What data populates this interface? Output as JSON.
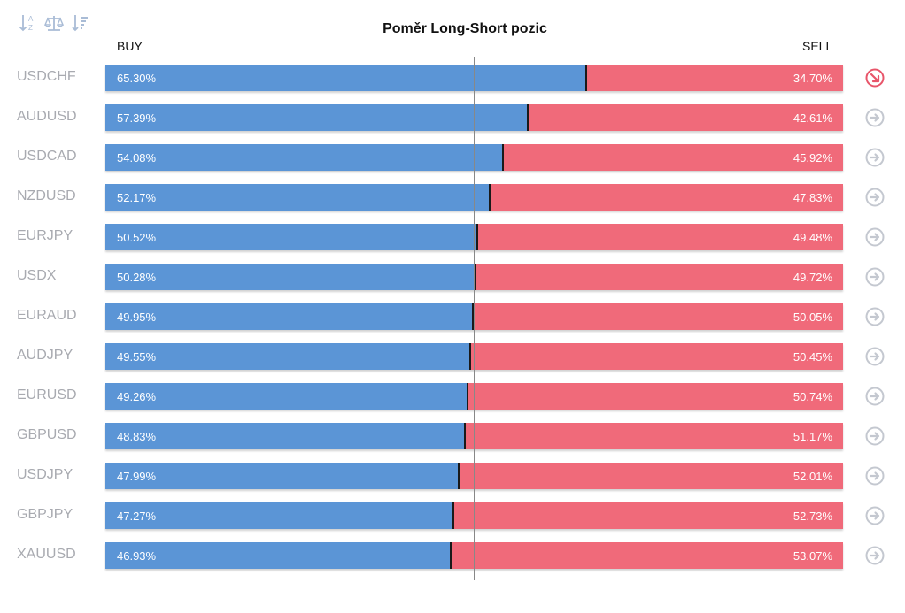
{
  "toolbar": {
    "icons": [
      "sort-alpha-icon",
      "balance-scale-icon",
      "sort-value-icon"
    ]
  },
  "colors": {
    "buy": "#5b95d6",
    "sell": "#f06a7a",
    "symbol_text": "#a8aab0",
    "arrow_neutral": "#c4c8d0",
    "arrow_active": "#e8556a"
  },
  "chart_data": {
    "type": "bar",
    "stacked": true,
    "orientation": "horizontal",
    "title": "Poměr Long-Short pozic",
    "buy_label": "BUY",
    "sell_label": "SELL",
    "xlim": [
      0,
      100
    ],
    "reference_line": 50,
    "categories": [
      "USDCHF",
      "AUDUSD",
      "USDCAD",
      "NZDUSD",
      "EURJPY",
      "USDX",
      "EURAUD",
      "AUDJPY",
      "EURUSD",
      "GBPUSD",
      "USDJPY",
      "GBPJPY",
      "XAUUSD"
    ],
    "series": [
      {
        "name": "BUY",
        "values": [
          65.3,
          57.39,
          54.08,
          52.17,
          50.52,
          50.28,
          49.95,
          49.55,
          49.26,
          48.83,
          47.99,
          47.27,
          46.93
        ]
      },
      {
        "name": "SELL",
        "values": [
          34.7,
          42.61,
          45.92,
          47.83,
          49.48,
          49.72,
          50.05,
          50.45,
          50.74,
          51.17,
          52.01,
          52.73,
          53.07
        ]
      }
    ],
    "buy_labels": [
      "65.30%",
      "57.39%",
      "54.08%",
      "52.17%",
      "50.52%",
      "50.28%",
      "49.95%",
      "49.55%",
      "49.26%",
      "48.83%",
      "47.99%",
      "47.27%",
      "46.93%"
    ],
    "sell_labels": [
      "34.70%",
      "42.61%",
      "45.92%",
      "47.83%",
      "49.48%",
      "49.72%",
      "50.05%",
      "50.45%",
      "50.74%",
      "51.17%",
      "52.01%",
      "52.73%",
      "53.07%"
    ],
    "row_icons": [
      "arrow-down-right-icon",
      "arrow-right-icon",
      "arrow-right-icon",
      "arrow-right-icon",
      "arrow-right-icon",
      "arrow-right-icon",
      "arrow-right-icon",
      "arrow-right-icon",
      "arrow-right-icon",
      "arrow-right-icon",
      "arrow-right-icon",
      "arrow-right-icon",
      "arrow-right-icon"
    ]
  }
}
